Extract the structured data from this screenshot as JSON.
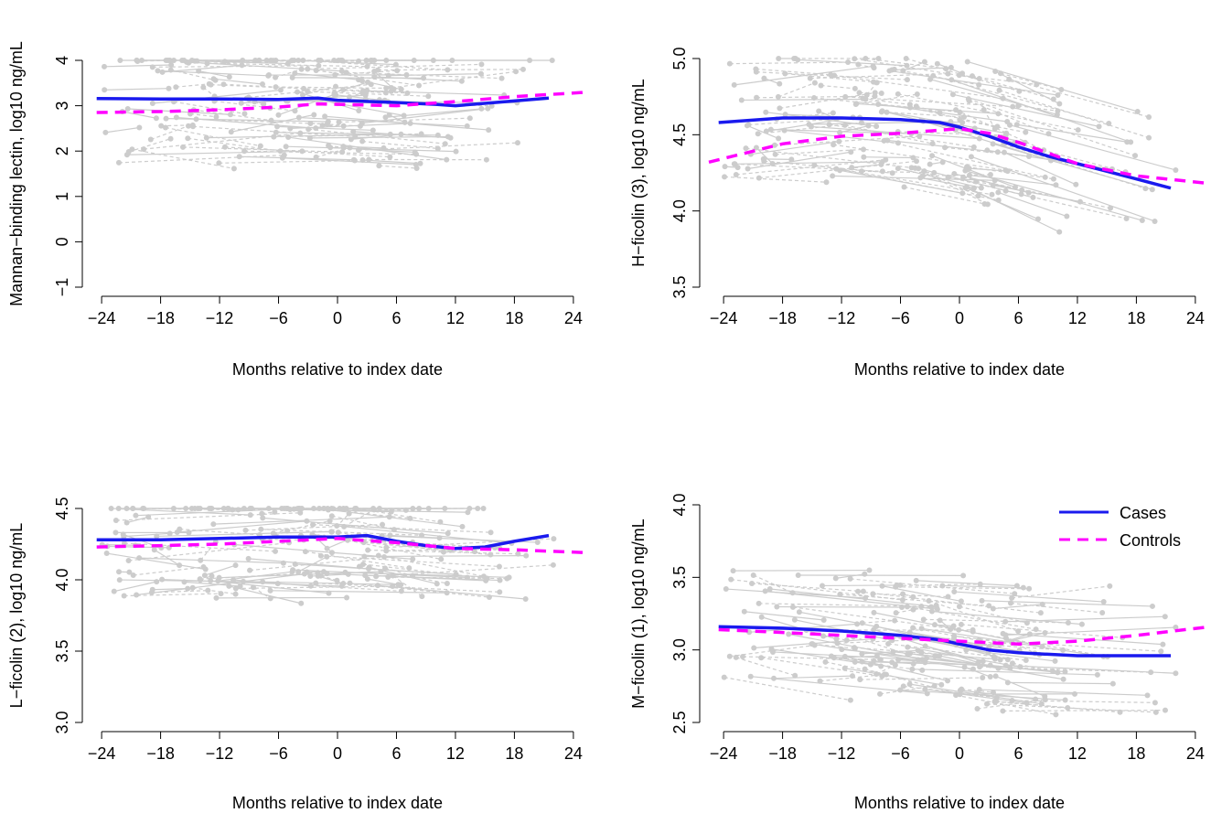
{
  "figure": {
    "colors": {
      "cases": "#1a1aee",
      "controls": "#ff00ff",
      "individual": "#cccccc",
      "axis": "#000000"
    },
    "legend": {
      "position": "top-right of bottom-right panel",
      "cases_label": "Cases",
      "controls_label": "Controls"
    }
  },
  "chart_data": [
    {
      "type": "line",
      "xlabel": "Months relative to index date",
      "ylabel": "Mannan−binding lectin, log10 ng/mL",
      "x_ticks": [
        -24,
        -18,
        -12,
        -6,
        0,
        6,
        12,
        18,
        24
      ],
      "x_tick_labels": [
        "−24",
        "−18",
        "−12",
        "−6",
        "0",
        "6",
        "12",
        "18",
        "24"
      ],
      "y_ticks": [
        -1,
        0,
        1,
        2,
        3,
        4
      ],
      "y_tick_labels": [
        "−1",
        "0",
        "1",
        "2",
        "3",
        "4"
      ],
      "xlim": [
        -25.5,
        25.5
      ],
      "ylim": [
        -1,
        4
      ],
      "series": [
        {
          "name": "Cases",
          "x": [
            -24.5,
            -18,
            -12,
            -6,
            -2,
            0,
            6,
            10,
            12,
            16,
            21.5
          ],
          "y": [
            3.16,
            3.15,
            3.15,
            3.14,
            3.17,
            3.12,
            3.07,
            3.03,
            3.0,
            3.07,
            3.17
          ]
        },
        {
          "name": "Controls",
          "x": [
            -24.5,
            -18,
            -12,
            -6,
            -2,
            0,
            6,
            12,
            18,
            25.5
          ],
          "y": [
            2.85,
            2.87,
            2.91,
            2.97,
            3.04,
            3.03,
            3.0,
            3.09,
            3.2,
            3.3
          ]
        }
      ]
    },
    {
      "type": "line",
      "xlabel": "Months relative to index date",
      "ylabel": "H−ficolin (3), log10 ng/mL",
      "x_ticks": [
        -24,
        -18,
        -12,
        -6,
        0,
        6,
        12,
        18,
        24
      ],
      "x_tick_labels": [
        "−24",
        "−18",
        "−12",
        "−6",
        "0",
        "6",
        "12",
        "18",
        "24"
      ],
      "y_ticks": [
        3.5,
        4.0,
        4.5,
        5.0
      ],
      "y_tick_labels": [
        "3.5",
        "4.0",
        "4.5",
        "5.0"
      ],
      "xlim": [
        -25.5,
        25.5
      ],
      "ylim": [
        3.5,
        5.0
      ],
      "series": [
        {
          "name": "Cases",
          "x": [
            -24.5,
            -18,
            -12,
            -6,
            -2,
            0,
            3,
            6,
            9,
            12,
            15,
            18,
            21.5
          ],
          "y": [
            4.58,
            4.61,
            4.61,
            4.6,
            4.58,
            4.55,
            4.49,
            4.42,
            4.36,
            4.31,
            4.26,
            4.21,
            4.15
          ]
        },
        {
          "name": "Controls",
          "x": [
            -25.5,
            -18,
            -12,
            -6,
            -2,
            0,
            3,
            6,
            9,
            12,
            15,
            18,
            25.5
          ],
          "y": [
            4.32,
            4.44,
            4.49,
            4.51,
            4.53,
            4.54,
            4.51,
            4.45,
            4.38,
            4.31,
            4.27,
            4.23,
            4.18
          ]
        }
      ]
    },
    {
      "type": "line",
      "xlabel": "Months relative to index date",
      "ylabel": "L−ficolin (2), log10 ng/mL",
      "x_ticks": [
        -24,
        -18,
        -12,
        -6,
        0,
        6,
        12,
        18,
        24
      ],
      "x_tick_labels": [
        "−24",
        "−18",
        "−12",
        "−6",
        "0",
        "6",
        "12",
        "18",
        "24"
      ],
      "y_ticks": [
        3.0,
        3.5,
        4.0,
        4.5
      ],
      "y_tick_labels": [
        "3.0",
        "3.5",
        "4.0",
        "4.5"
      ],
      "xlim": [
        -25.5,
        25.5
      ],
      "ylim": [
        3.0,
        4.5
      ],
      "series": [
        {
          "name": "Cases",
          "x": [
            -24.5,
            -18,
            -12,
            -6,
            0,
            3,
            6,
            9,
            12,
            15,
            18,
            21.5
          ],
          "y": [
            4.28,
            4.28,
            4.29,
            4.3,
            4.3,
            4.31,
            4.27,
            4.24,
            4.22,
            4.23,
            4.27,
            4.31
          ]
        },
        {
          "name": "Controls",
          "x": [
            -24.5,
            -18,
            -12,
            -6,
            0,
            6,
            12,
            18,
            25.5
          ],
          "y": [
            4.23,
            4.24,
            4.25,
            4.27,
            4.29,
            4.26,
            4.22,
            4.21,
            4.19
          ]
        }
      ]
    },
    {
      "type": "line",
      "xlabel": "Months relative to index date",
      "ylabel": "M−ficolin (1), log10 ng/mL",
      "x_ticks": [
        -24,
        -18,
        -12,
        -6,
        0,
        6,
        12,
        18,
        24
      ],
      "x_tick_labels": [
        "−24",
        "−18",
        "−12",
        "−6",
        "0",
        "6",
        "12",
        "18",
        "24"
      ],
      "y_ticks": [
        2.5,
        3.0,
        3.5,
        4.0
      ],
      "y_tick_labels": [
        "2.5",
        "3.0",
        "3.5",
        "4.0"
      ],
      "xlim": [
        -25.5,
        25.5
      ],
      "ylim": [
        2.5,
        4.0
      ],
      "series": [
        {
          "name": "Cases",
          "x": [
            -24.5,
            -18,
            -12,
            -6,
            -2,
            0,
            3,
            6,
            9,
            12,
            18,
            21.5
          ],
          "y": [
            3.16,
            3.15,
            3.13,
            3.1,
            3.07,
            3.04,
            3.0,
            2.98,
            2.97,
            2.96,
            2.96,
            2.96
          ]
        },
        {
          "name": "Controls",
          "x": [
            -24.5,
            -18,
            -12,
            -6,
            0,
            6,
            12,
            18,
            25.5
          ],
          "y": [
            3.14,
            3.12,
            3.1,
            3.08,
            3.06,
            3.04,
            3.06,
            3.1,
            3.16
          ]
        }
      ]
    }
  ]
}
